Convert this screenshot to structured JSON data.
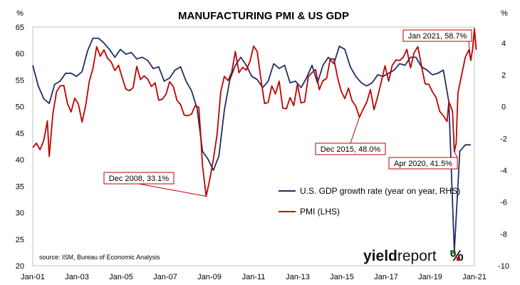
{
  "chart_data": {
    "type": "line",
    "title": "MANUFACTURING PMI & US GDP",
    "left_unit": "%",
    "right_unit": "%",
    "left_ylim": [
      20,
      65
    ],
    "left_ticks": [
      "20",
      "25",
      "30",
      "35",
      "40",
      "45",
      "50",
      "55",
      "60",
      "65"
    ],
    "right_ylim": [
      -10,
      5
    ],
    "right_ticks": [
      "-10",
      "-8",
      "-6",
      "-4",
      "-2",
      "0",
      "2",
      "4"
    ],
    "x_start": "2001-01",
    "x_end": "2021-03",
    "x_tick_labels": [
      "Jan-01",
      "Jan-03",
      "Jan-05",
      "Jan-07",
      "Jan-09",
      "Jan-11",
      "Jan-13",
      "Jan-15",
      "Jan-17",
      "Jan-19",
      "Jan-21"
    ],
    "grid": false,
    "legend_position": "bottom-right",
    "source": "source: ISM, Bureau of Economic Analysis",
    "logo": "yieldreport%",
    "series": [
      {
        "name": "U.S. GDP growth rate (year on year, RHS)",
        "axis": "right",
        "color": "#1f2f66",
        "points": [
          [
            "2001-01",
            2.6
          ],
          [
            "2001-04",
            1.3
          ],
          [
            "2001-07",
            0.5
          ],
          [
            "2001-10",
            0.2
          ],
          [
            "2002-01",
            1.4
          ],
          [
            "2002-04",
            1.6
          ],
          [
            "2002-07",
            2.1
          ],
          [
            "2002-10",
            2.1
          ],
          [
            "2003-01",
            1.9
          ],
          [
            "2003-04",
            2.2
          ],
          [
            "2003-07",
            3.5
          ],
          [
            "2003-10",
            4.3
          ],
          [
            "2004-01",
            4.3
          ],
          [
            "2004-04",
            4.0
          ],
          [
            "2004-07",
            3.6
          ],
          [
            "2004-10",
            3.1
          ],
          [
            "2005-01",
            3.6
          ],
          [
            "2005-04",
            3.3
          ],
          [
            "2005-07",
            3.4
          ],
          [
            "2005-10",
            3.0
          ],
          [
            "2006-01",
            3.1
          ],
          [
            "2006-04",
            2.9
          ],
          [
            "2006-07",
            2.4
          ],
          [
            "2006-10",
            2.5
          ],
          [
            "2007-01",
            1.6
          ],
          [
            "2007-04",
            1.8
          ],
          [
            "2007-07",
            2.3
          ],
          [
            "2007-10",
            2.5
          ],
          [
            "2008-01",
            1.6
          ],
          [
            "2008-04",
            1.0
          ],
          [
            "2008-07",
            -0.1
          ],
          [
            "2008-10",
            -2.8
          ],
          [
            "2009-01",
            -3.3
          ],
          [
            "2009-04",
            -4.0
          ],
          [
            "2009-07",
            -3.1
          ],
          [
            "2009-10",
            -0.2
          ],
          [
            "2010-01",
            1.7
          ],
          [
            "2010-04",
            2.6
          ],
          [
            "2010-07",
            3.1
          ],
          [
            "2010-10",
            2.6
          ],
          [
            "2011-01",
            1.9
          ],
          [
            "2011-04",
            1.7
          ],
          [
            "2011-07",
            1.2
          ],
          [
            "2011-10",
            1.6
          ],
          [
            "2012-01",
            2.7
          ],
          [
            "2012-04",
            2.4
          ],
          [
            "2012-07",
            2.6
          ],
          [
            "2012-10",
            1.5
          ],
          [
            "2013-01",
            1.6
          ],
          [
            "2013-04",
            1.2
          ],
          [
            "2013-07",
            1.8
          ],
          [
            "2013-10",
            2.6
          ],
          [
            "2014-01",
            1.5
          ],
          [
            "2014-04",
            2.6
          ],
          [
            "2014-07",
            3.1
          ],
          [
            "2014-10",
            2.7
          ],
          [
            "2015-01",
            3.8
          ],
          [
            "2015-04",
            3.6
          ],
          [
            "2015-07",
            2.5
          ],
          [
            "2015-10",
            1.9
          ],
          [
            "2016-01",
            1.5
          ],
          [
            "2016-04",
            1.3
          ],
          [
            "2016-07",
            1.5
          ],
          [
            "2016-10",
            2.0
          ],
          [
            "2017-01",
            1.9
          ],
          [
            "2017-04",
            2.1
          ],
          [
            "2017-07",
            2.3
          ],
          [
            "2017-10",
            2.7
          ],
          [
            "2018-01",
            2.6
          ],
          [
            "2018-04",
            3.1
          ],
          [
            "2018-07",
            3.1
          ],
          [
            "2018-10",
            2.5
          ],
          [
            "2019-01",
            2.3
          ],
          [
            "2019-04",
            2.0
          ],
          [
            "2019-07",
            2.1
          ],
          [
            "2019-10",
            2.3
          ],
          [
            "2020-01",
            0.3
          ],
          [
            "2020-04",
            -9.1
          ],
          [
            "2020-07",
            -2.8
          ],
          [
            "2020-10",
            -2.4
          ],
          [
            "2021-01",
            -2.4
          ]
        ]
      },
      {
        "name": "PMI (LHS)",
        "axis": "left",
        "color": "#c00000",
        "points": [
          [
            "2001-01",
            42.3
          ],
          [
            "2001-03",
            43.1
          ],
          [
            "2001-05",
            41.9
          ],
          [
            "2001-07",
            43.6
          ],
          [
            "2001-09",
            47.3
          ],
          [
            "2001-10",
            40.6
          ],
          [
            "2001-12",
            48.6
          ],
          [
            "2002-02",
            52.8
          ],
          [
            "2002-04",
            53.9
          ],
          [
            "2002-06",
            54.0
          ],
          [
            "2002-08",
            50.6
          ],
          [
            "2002-10",
            49.0
          ],
          [
            "2002-12",
            51.6
          ],
          [
            "2003-02",
            50.5
          ],
          [
            "2003-04",
            47.1
          ],
          [
            "2003-06",
            50.2
          ],
          [
            "2003-08",
            54.8
          ],
          [
            "2003-10",
            57.2
          ],
          [
            "2003-12",
            61.3
          ],
          [
            "2004-02",
            59.5
          ],
          [
            "2004-04",
            60.7
          ],
          [
            "2004-06",
            59.1
          ],
          [
            "2004-08",
            58.4
          ],
          [
            "2004-10",
            56.8
          ],
          [
            "2004-12",
            57.8
          ],
          [
            "2005-02",
            55.5
          ],
          [
            "2005-04",
            53.3
          ],
          [
            "2005-06",
            53.0
          ],
          [
            "2005-08",
            53.6
          ],
          [
            "2005-10",
            57.6
          ],
          [
            "2005-12",
            55.1
          ],
          [
            "2006-02",
            55.8
          ],
          [
            "2006-04",
            55.2
          ],
          [
            "2006-06",
            53.8
          ],
          [
            "2006-08",
            54.5
          ],
          [
            "2006-10",
            51.2
          ],
          [
            "2006-12",
            51.4
          ],
          [
            "2007-02",
            52.3
          ],
          [
            "2007-04",
            54.7
          ],
          [
            "2007-06",
            53.8
          ],
          [
            "2007-08",
            51.2
          ],
          [
            "2007-10",
            50.4
          ],
          [
            "2007-12",
            48.4
          ],
          [
            "2008-02",
            48.3
          ],
          [
            "2008-04",
            48.6
          ],
          [
            "2008-06",
            50.2
          ],
          [
            "2008-08",
            49.9
          ],
          [
            "2008-09",
            44.8
          ],
          [
            "2008-10",
            38.9
          ],
          [
            "2008-12",
            33.1
          ],
          [
            "2009-02",
            36.3
          ],
          [
            "2009-04",
            40.1
          ],
          [
            "2009-06",
            44.8
          ],
          [
            "2009-08",
            52.8
          ],
          [
            "2009-10",
            55.7
          ],
          [
            "2009-12",
            54.9
          ],
          [
            "2010-02",
            56.5
          ],
          [
            "2010-04",
            60.4
          ],
          [
            "2010-06",
            56.4
          ],
          [
            "2010-08",
            57.4
          ],
          [
            "2010-10",
            56.9
          ],
          [
            "2010-12",
            58.5
          ],
          [
            "2011-02",
            61.4
          ],
          [
            "2011-04",
            60.4
          ],
          [
            "2011-06",
            55.3
          ],
          [
            "2011-08",
            50.6
          ],
          [
            "2011-10",
            50.8
          ],
          [
            "2011-12",
            53.9
          ],
          [
            "2012-02",
            52.4
          ],
          [
            "2012-04",
            54.8
          ],
          [
            "2012-06",
            49.7
          ],
          [
            "2012-08",
            49.6
          ],
          [
            "2012-10",
            51.7
          ],
          [
            "2012-12",
            50.2
          ],
          [
            "2013-02",
            54.2
          ],
          [
            "2013-04",
            50.7
          ],
          [
            "2013-06",
            50.9
          ],
          [
            "2013-08",
            55.7
          ],
          [
            "2013-10",
            56.4
          ],
          [
            "2013-12",
            57.0
          ],
          [
            "2014-02",
            53.2
          ],
          [
            "2014-04",
            54.9
          ],
          [
            "2014-06",
            55.3
          ],
          [
            "2014-08",
            59.0
          ],
          [
            "2014-10",
            59.0
          ],
          [
            "2014-12",
            55.5
          ],
          [
            "2015-02",
            52.9
          ],
          [
            "2015-04",
            51.5
          ],
          [
            "2015-06",
            53.5
          ],
          [
            "2015-08",
            51.1
          ],
          [
            "2015-10",
            50.1
          ],
          [
            "2015-12",
            48.0
          ],
          [
            "2016-02",
            49.5
          ],
          [
            "2016-04",
            50.8
          ],
          [
            "2016-06",
            53.2
          ],
          [
            "2016-08",
            49.4
          ],
          [
            "2016-10",
            51.9
          ],
          [
            "2016-12",
            54.7
          ],
          [
            "2017-02",
            57.7
          ],
          [
            "2017-04",
            54.8
          ],
          [
            "2017-06",
            57.8
          ],
          [
            "2017-08",
            58.8
          ],
          [
            "2017-10",
            58.7
          ],
          [
            "2017-12",
            59.3
          ],
          [
            "2018-02",
            60.8
          ],
          [
            "2018-04",
            57.3
          ],
          [
            "2018-06",
            60.2
          ],
          [
            "2018-08",
            61.3
          ],
          [
            "2018-10",
            57.7
          ],
          [
            "2018-12",
            54.3
          ],
          [
            "2019-02",
            54.2
          ],
          [
            "2019-04",
            52.8
          ],
          [
            "2019-06",
            51.7
          ],
          [
            "2019-08",
            49.1
          ],
          [
            "2019-10",
            48.3
          ],
          [
            "2019-12",
            47.2
          ],
          [
            "2020-01",
            50.9
          ],
          [
            "2020-02",
            50.1
          ],
          [
            "2020-03",
            49.1
          ],
          [
            "2020-04",
            41.5
          ],
          [
            "2020-05",
            43.1
          ],
          [
            "2020-06",
            52.6
          ],
          [
            "2020-08",
            56.0
          ],
          [
            "2020-10",
            59.3
          ],
          [
            "2020-12",
            60.7
          ],
          [
            "2021-01",
            58.7
          ],
          [
            "2021-02",
            60.8
          ],
          [
            "2021-03",
            64.7
          ],
          [
            "2021-04",
            60.7
          ]
        ]
      }
    ],
    "annotations": [
      {
        "text": "Dec 2008, 33.1%",
        "series": "PMI (LHS)",
        "date": "2008-12",
        "value": 33.1
      },
      {
        "text": "Dec 2015, 48.0%",
        "series": "PMI (LHS)",
        "date": "2015-12",
        "value": 48.0
      },
      {
        "text": "Apr 2020, 41.5%",
        "series": "PMI (LHS)",
        "date": "2020-04",
        "value": 41.5
      },
      {
        "text": "Jan 2021, 58.7%",
        "series": "PMI (LHS)",
        "date": "2021-01",
        "value": 58.7
      }
    ]
  }
}
